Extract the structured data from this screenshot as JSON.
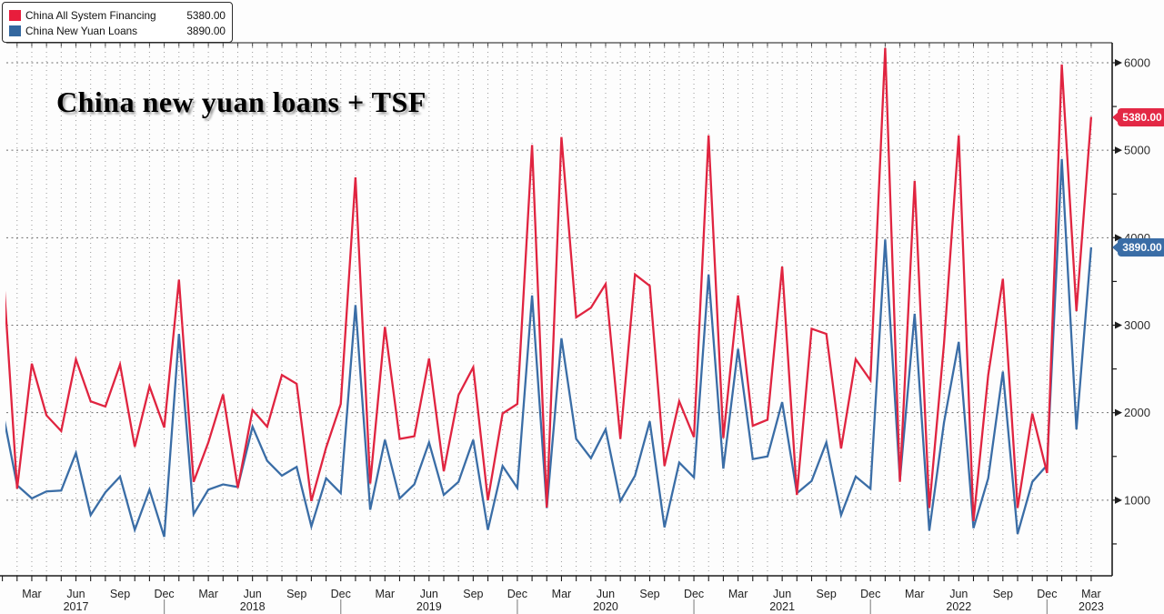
{
  "title": "China new yuan loans + TSF",
  "legend": {
    "items": [
      {
        "label": "China All System Financing",
        "value": "5380.00",
        "color": "#e81d3c"
      },
      {
        "label": "China New Yuan Loans",
        "value": "3890.00",
        "color": "#33679f"
      }
    ]
  },
  "value_tags": [
    {
      "text": "5380.00",
      "color": "#e32845",
      "value": 5380
    },
    {
      "text": "3890.00",
      "color": "#3a6da6",
      "value": 3890
    }
  ],
  "chart_data": {
    "type": "line",
    "title": "China new yuan loans + TSF",
    "x_start": "2017-01",
    "x_end": "2023-03",
    "x_unit": "month",
    "ylim": [
      140,
      6230
    ],
    "grid": {
      "h_lines_every": 1000,
      "v_lines_every_month": true
    },
    "legend_position": "top-left",
    "y_axis": {
      "side": "right",
      "major_ticks": [
        1000,
        2000,
        3000,
        4000,
        5000,
        6000
      ],
      "minor_tick_step": 500,
      "tick_arrow": "►"
    },
    "x_axis": {
      "quarter_month_names": [
        "Mar",
        "Jun",
        "Sep",
        "Dec"
      ],
      "label_month_indices": [
        2,
        5,
        8,
        11,
        14,
        17,
        20,
        23,
        26,
        29,
        32,
        35,
        38,
        41,
        44,
        47,
        50,
        53,
        56,
        59,
        62,
        65,
        68,
        71,
        74
      ],
      "year_labels": [
        {
          "label": "2017",
          "month_index": 5
        },
        {
          "label": "2018",
          "month_index": 17
        },
        {
          "label": "2019",
          "month_index": 29
        },
        {
          "label": "2020",
          "month_index": 41
        },
        {
          "label": "2021",
          "month_index": 53
        },
        {
          "label": "2022",
          "month_index": 65
        },
        {
          "label": "2023",
          "month_index": 74
        }
      ],
      "year_divider_month_indices": [
        11,
        23,
        35,
        47,
        59,
        71
      ]
    },
    "series": [
      {
        "name": "China New Yuan Loans",
        "color": "#3a6da6",
        "last_value": 3890,
        "values": [
          2030,
          1170,
          1020,
          1100,
          1110,
          1540,
          830,
          1090,
          1270,
          660,
          1120,
          580,
          2900,
          840,
          1120,
          1180,
          1150,
          1840,
          1450,
          1280,
          1380,
          700,
          1250,
          1080,
          3230,
          890,
          1690,
          1020,
          1180,
          1660,
          1060,
          1210,
          1690,
          660,
          1390,
          1140,
          3340,
          910,
          2850,
          1700,
          1480,
          1810,
          990,
          1280,
          1900,
          690,
          1430,
          1260,
          3580,
          1360,
          2730,
          1470,
          1500,
          2120,
          1080,
          1220,
          1660,
          830,
          1270,
          1130,
          3980,
          1230,
          3130,
          650,
          1890,
          2810,
          680,
          1250,
          2470,
          615,
          1210,
          1400,
          4900,
          1810,
          3890
        ]
      },
      {
        "name": "China All System Financing",
        "color": "#e02440",
        "last_value": 5380,
        "values": [
          3760,
          1130,
          2560,
          1970,
          1790,
          2610,
          2130,
          2070,
          2550,
          1610,
          2300,
          1830,
          3520,
          1210,
          1660,
          2210,
          1140,
          2030,
          1840,
          2430,
          2330,
          990,
          1600,
          2100,
          4690,
          1190,
          2980,
          1700,
          1730,
          2620,
          1330,
          2200,
          2520,
          1000,
          1990,
          2100,
          5060,
          915,
          5150,
          3090,
          3200,
          3470,
          1700,
          3580,
          3450,
          1390,
          2130,
          1720,
          5170,
          1710,
          3340,
          1850,
          1920,
          3670,
          1060,
          2960,
          2900,
          1590,
          2610,
          2370,
          6170,
          1210,
          4650,
          910,
          2790,
          5170,
          760,
          2430,
          3530,
          910,
          1990,
          1310,
          5980,
          3160,
          5380
        ]
      }
    ]
  }
}
